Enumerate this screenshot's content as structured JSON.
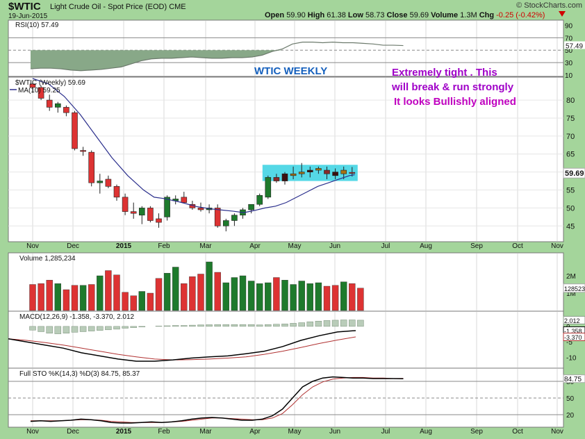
{
  "header": {
    "symbol": "$WTIC",
    "name": "Light Crude Oil - Spot Price (EOD)",
    "exchange": "CME",
    "date": "19-Jun-2015",
    "open_label": "Open",
    "open": "59.90",
    "high_label": "High",
    "high": "61.38",
    "low_label": "Low",
    "low": "58.73",
    "close_label": "Close",
    "close": "59.69",
    "volume_label": "Volume",
    "volume": "1.3M",
    "chg_label": "Chg",
    "chg": "-0.25 (-0.42%)",
    "brand": "© StockCharts.com"
  },
  "colors": {
    "up": "#1e7a2c",
    "down": "#dd3333",
    "neutral": "#a87212",
    "ma": "#2a2e8c",
    "highlight": "#55d8e6",
    "annot_purple": "#a000c8",
    "annot_blue": "#1560bd",
    "annot_pink": "#c000c0",
    "rsi_fill": "#88a888"
  },
  "annotations": {
    "weekly": "WTIC WEEKLY",
    "line1": "Extremely tight . This",
    "line2": "will break & run strongly",
    "line3": "It looks Bullishly aligned"
  },
  "chart_data": [
    {
      "panel": "rsi",
      "type": "line",
      "title": "RSI(10) 57.49",
      "ylim": [
        10,
        95
      ],
      "yticks": [
        10,
        30,
        50,
        70,
        90
      ],
      "reference_lines": [
        30,
        50,
        70
      ],
      "current_label": "57.49",
      "values": [
        20,
        21,
        21,
        20,
        18,
        17,
        18,
        19,
        21,
        23,
        28,
        33,
        36,
        37,
        37,
        38,
        39,
        38,
        37,
        37,
        38,
        38,
        39,
        42,
        48,
        52,
        60,
        63,
        63,
        62,
        63,
        62,
        62,
        61,
        60,
        58,
        58,
        57.49
      ]
    },
    {
      "panel": "price",
      "type": "candlestick",
      "title": "$WTIC (Weekly) 59.69",
      "legend": "MA(10) 59.25",
      "ylim": [
        41,
        86
      ],
      "yticks": [
        45,
        50,
        55,
        60,
        65,
        70,
        75,
        80
      ],
      "current_label": "59.69",
      "ohlc": [
        [
          84.5,
          85,
          82,
          83.5
        ],
        [
          83.5,
          84,
          80,
          80.5
        ],
        [
          80,
          81.5,
          77,
          78
        ],
        [
          78,
          79.5,
          76.5,
          79
        ],
        [
          78,
          78.5,
          75.5,
          76.5
        ],
        [
          76.5,
          77,
          66,
          66.5
        ],
        [
          66,
          67,
          64.5,
          66
        ],
        [
          65.5,
          66,
          56,
          57
        ],
        [
          57,
          59.5,
          54,
          57.5
        ],
        [
          58,
          59,
          55.5,
          56
        ],
        [
          56,
          56.5,
          52,
          53
        ],
        [
          53,
          54,
          48,
          49
        ],
        [
          49,
          51.5,
          47,
          48.5
        ],
        [
          48,
          50.5,
          45.5,
          50
        ],
        [
          50,
          50.5,
          46,
          46.5
        ],
        [
          47,
          48.5,
          44.5,
          46
        ],
        [
          47.5,
          53.5,
          46.5,
          53
        ],
        [
          52,
          53.5,
          51,
          52.5
        ],
        [
          53,
          54.5,
          51.5,
          51.5
        ],
        [
          51,
          52,
          49.5,
          50
        ],
        [
          50,
          51.5,
          49,
          49.5
        ],
        [
          49.5,
          51,
          48.5,
          50
        ],
        [
          50,
          51,
          44.5,
          45
        ],
        [
          45,
          47,
          43.5,
          46.5
        ],
        [
          46.5,
          48.5,
          45,
          48
        ],
        [
          48,
          50,
          47,
          49.5
        ],
        [
          49.5,
          51,
          48.5,
          51
        ],
        [
          51,
          54,
          50.5,
          53.5
        ],
        [
          53,
          59,
          52.5,
          58.5
        ],
        [
          58.5,
          59.5,
          57,
          57.5
        ],
        [
          57.5,
          60,
          56.5,
          59.5
        ],
        [
          59,
          61.5,
          58,
          59.5
        ],
        [
          59.5,
          62.5,
          58.5,
          60
        ],
        [
          60,
          61.5,
          58.5,
          60.5
        ],
        [
          60.5,
          61.5,
          59.5,
          61
        ],
        [
          60.5,
          61.5,
          58,
          59.5
        ],
        [
          60,
          61,
          58,
          59
        ],
        [
          59.5,
          61.5,
          58,
          60.5
        ],
        [
          59.9,
          61.38,
          58.73,
          59.69
        ]
      ],
      "ma10": [
        [
          0,
          86
        ],
        [
          3,
          84.5
        ],
        [
          6,
          81
        ],
        [
          9,
          76
        ],
        [
          12,
          70
        ],
        [
          15,
          64
        ],
        [
          18,
          59
        ],
        [
          21,
          55
        ],
        [
          23,
          53
        ],
        [
          25,
          52.6
        ],
        [
          28,
          51.6
        ],
        [
          31,
          50.4
        ],
        [
          34,
          49.7
        ],
        [
          36,
          49.4
        ],
        [
          38,
          49.1
        ],
        [
          40,
          48.7
        ],
        [
          42,
          49.3
        ],
        [
          44,
          50
        ],
        [
          46,
          50.5
        ],
        [
          48,
          51.5
        ],
        [
          50,
          53
        ],
        [
          52,
          54.5
        ],
        [
          54,
          56
        ],
        [
          56,
          57
        ],
        [
          58,
          58
        ],
        [
          60,
          59
        ],
        [
          61,
          59.25
        ]
      ],
      "highlight_box": {
        "x_from": 28,
        "x_to": 38,
        "y_from": 57.5,
        "y_to": 62
      }
    },
    {
      "panel": "volume",
      "type": "bar",
      "title": "Volume 1,285,234",
      "ylim": [
        0,
        3.2
      ],
      "yticks": [
        "1M",
        "2M"
      ],
      "current_label": "1285234",
      "values": [
        1.5,
        1.55,
        1.75,
        1.55,
        1.2,
        1.45,
        1.45,
        1.5,
        2.0,
        2.3,
        2.05,
        1.05,
        0.85,
        1.1,
        1.0,
        1.85,
        2.15,
        2.5,
        1.55,
        1.95,
        2.1,
        2.8,
        2.2,
        1.6,
        1.9,
        2.0,
        1.7,
        1.55,
        1.6,
        1.9,
        1.75,
        1.5,
        1.7,
        1.55,
        1.6,
        1.4,
        1.45,
        1.65,
        1.55,
        1.29
      ]
    },
    {
      "panel": "macd",
      "type": "line",
      "title": "MACD(12,26,9) -1.358, -3.370, 2.012",
      "macd_label": "-1.358",
      "signal_label": "-3.370",
      "hist_label": "2.012",
      "ylim": [
        -13,
        4
      ],
      "yticks": [
        -10,
        -5,
        0
      ],
      "macd": [
        -4,
        -5,
        -6,
        -7,
        -8.5,
        -9.5,
        -10.5,
        -11.2,
        -11.2,
        -10.8,
        -10.2,
        -9.8,
        -9.5,
        -8.8,
        -8,
        -6.5,
        -4.5,
        -3,
        -1.8,
        -1.358
      ],
      "signal": [
        -4,
        -4.5,
        -5.2,
        -6,
        -7,
        -8,
        -9,
        -9.8,
        -10.5,
        -10.8,
        -10.7,
        -10.5,
        -10.2,
        -9.8,
        -9,
        -8,
        -6.8,
        -5.5,
        -4.4,
        -3.37
      ],
      "histogram": [
        -1.2,
        -1.7,
        -2.2,
        -2.4,
        -2.2,
        -1.9,
        -1.7,
        -1.5,
        -1.3,
        -1.1,
        -0.9,
        -0.6,
        -0.4,
        -0.2,
        0,
        0.1,
        0.2,
        0.3,
        0.3,
        0.4,
        0.5,
        0.55,
        0.6,
        0.6,
        0.6,
        0.6,
        0.6,
        0.5,
        0.6,
        0.7,
        0.8,
        1.0,
        1.2,
        1.5,
        1.7,
        1.9,
        2.0,
        2.1,
        2.1,
        2.012
      ]
    },
    {
      "panel": "stochastic",
      "type": "line",
      "title": "Full STO %K(14,3) %D(3) 84.75, 85.37",
      "k_label": "84.75",
      "d_label": "85.37",
      "ylim": [
        0,
        100
      ],
      "yticks": [
        20,
        50,
        80
      ],
      "reference_lines": [
        20,
        50,
        80
      ],
      "k": [
        8,
        9,
        8,
        9,
        10,
        12,
        11,
        9,
        6,
        5,
        5,
        6,
        7,
        6,
        7,
        9,
        12,
        14,
        15,
        14,
        12,
        10,
        10,
        12,
        18,
        30,
        50,
        70,
        80,
        86,
        88,
        87,
        86,
        86,
        85,
        85,
        85,
        84.75
      ],
      "d": [
        9,
        9,
        9,
        9,
        10,
        11,
        11,
        10,
        8,
        7,
        6,
        6,
        6,
        6,
        7,
        8,
        10,
        12,
        14,
        14,
        13,
        12,
        11,
        11,
        14,
        22,
        38,
        56,
        70,
        79,
        84,
        86,
        87,
        87,
        86,
        86,
        85,
        85.37
      ]
    }
  ],
  "x_axis": {
    "labels": [
      "Nov",
      "Dec",
      "2015",
      "Feb",
      "Mar",
      "Apr",
      "May",
      "Jun",
      "Jul",
      "Aug",
      "Sep",
      "Oct",
      "Nov"
    ],
    "positions": [
      47,
      105,
      178,
      236,
      296,
      367,
      424,
      482,
      555,
      613,
      686,
      745,
      802
    ]
  }
}
